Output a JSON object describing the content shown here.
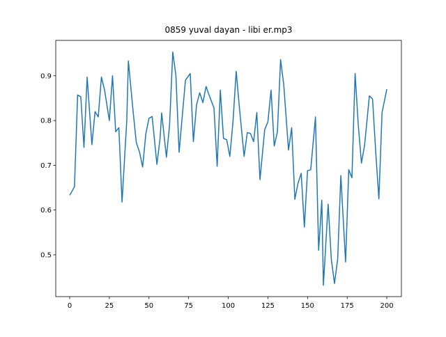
{
  "chart_data": {
    "type": "line",
    "title": "0859 yuval dayan - libi er.mp3",
    "x": [
      0,
      3,
      5,
      7,
      9,
      11,
      14,
      16,
      18,
      20,
      22,
      25,
      27,
      29,
      31,
      33,
      36,
      37,
      40,
      42,
      44,
      46,
      48,
      50,
      52,
      55,
      57,
      58,
      61,
      63,
      65,
      67,
      69,
      71,
      73,
      76,
      78,
      80,
      82,
      84,
      86,
      88,
      91,
      93,
      95,
      97,
      99,
      101,
      103,
      105,
      107,
      110,
      112,
      114,
      116,
      118,
      120,
      123,
      125,
      127,
      129,
      131,
      133,
      135,
      138,
      140,
      142,
      144,
      146,
      148,
      150,
      152,
      155,
      157,
      159,
      160,
      163,
      165,
      167,
      169,
      171,
      174,
      176,
      178,
      180,
      182,
      184,
      186,
      189,
      191,
      193,
      195,
      197,
      200
    ],
    "series": [
      {
        "color": "#1f77b4",
        "values": [
          0.633,
          0.652,
          0.857,
          0.853,
          0.74,
          0.897,
          0.746,
          0.82,
          0.808,
          0.897,
          0.868,
          0.8,
          0.9,
          0.775,
          0.784,
          0.618,
          0.8,
          0.933,
          0.82,
          0.751,
          0.73,
          0.696,
          0.77,
          0.805,
          0.809,
          0.702,
          0.76,
          0.817,
          0.718,
          0.79,
          0.953,
          0.9,
          0.729,
          0.81,
          0.89,
          0.905,
          0.753,
          0.835,
          0.862,
          0.84,
          0.876,
          0.856,
          0.828,
          0.698,
          0.868,
          0.76,
          0.757,
          0.72,
          0.798,
          0.91,
          0.83,
          0.72,
          0.773,
          0.771,
          0.753,
          0.818,
          0.668,
          0.78,
          0.797,
          0.868,
          0.743,
          0.775,
          0.936,
          0.88,
          0.734,
          0.784,
          0.624,
          0.66,
          0.682,
          0.562,
          0.688,
          0.69,
          0.808,
          0.51,
          0.622,
          0.432,
          0.613,
          0.49,
          0.436,
          0.49,
          0.677,
          0.484,
          0.69,
          0.672,
          0.905,
          0.79,
          0.705,
          0.745,
          0.855,
          0.848,
          0.73,
          0.625,
          0.818,
          0.87
        ]
      }
    ],
    "xlim": [
      -8.8,
      209.2
    ],
    "ylim": [
      0.4066,
      0.979
    ],
    "xticks": [
      0,
      25,
      50,
      75,
      100,
      125,
      150,
      175,
      200
    ],
    "yticks": [
      0.5,
      0.6,
      0.7,
      0.8,
      0.9
    ]
  }
}
